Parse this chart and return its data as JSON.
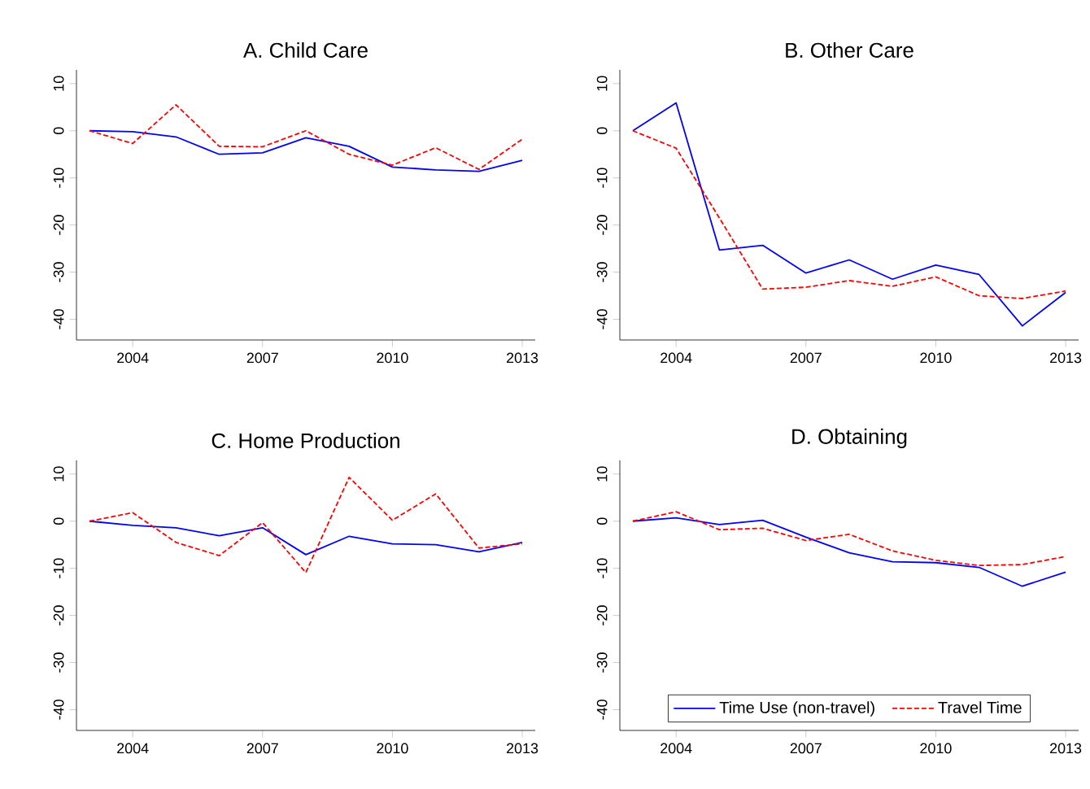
{
  "chart_data": [
    {
      "type": "line",
      "title": "A. Child Care",
      "x": [
        2003,
        2004,
        2005,
        2006,
        2007,
        2008,
        2009,
        2010,
        2011,
        2012,
        2013
      ],
      "xlim": [
        2002.7,
        2013.3
      ],
      "xticks": [
        2004,
        2007,
        2010,
        2013
      ],
      "ylim": [
        -44.4,
        12.9
      ],
      "yticks": [
        -40,
        -30,
        -20,
        -10,
        0,
        10
      ],
      "grid": false,
      "legend": false,
      "series": [
        {
          "color": "#0000ff",
          "line_style": "solid",
          "values": [
            0,
            -0.2,
            -1.3,
            -5,
            -4.7,
            -1.5,
            -3.3,
            -7.7,
            -8.3,
            -8.6,
            -6.3
          ]
        },
        {
          "color": "#ff0000",
          "line_style": "dashed",
          "values": [
            0,
            -2.7,
            5.5,
            -3.3,
            -3.4,
            0,
            -5,
            -7.3,
            -3.6,
            -8.2,
            -1.8
          ]
        }
      ]
    },
    {
      "type": "line",
      "title": "B. Other Care",
      "x": [
        2003,
        2004,
        2005,
        2006,
        2007,
        2008,
        2009,
        2010,
        2011,
        2012,
        2013
      ],
      "xlim": [
        2002.7,
        2013.3
      ],
      "xticks": [
        2004,
        2007,
        2010,
        2013
      ],
      "ylim": [
        -44.4,
        12.9
      ],
      "yticks": [
        -40,
        -30,
        -20,
        -10,
        0,
        10
      ],
      "grid": false,
      "legend": false,
      "series": [
        {
          "color": "#0000ff",
          "line_style": "solid",
          "values": [
            0,
            5.9,
            -25.3,
            -24.3,
            -30.2,
            -27.4,
            -31.5,
            -28.5,
            -30.5,
            -41.4,
            -34.3
          ]
        },
        {
          "color": "#ff0000",
          "line_style": "dashed",
          "values": [
            0,
            -3.7,
            -18.5,
            -33.6,
            -33.2,
            -31.8,
            -33,
            -31,
            -35,
            -35.6,
            -34
          ]
        }
      ]
    },
    {
      "type": "line",
      "title": "C. Home Production",
      "x": [
        2003,
        2004,
        2005,
        2006,
        2007,
        2008,
        2009,
        2010,
        2011,
        2012,
        2013
      ],
      "xlim": [
        2002.7,
        2013.3
      ],
      "xticks": [
        2004,
        2007,
        2010,
        2013
      ],
      "ylim": [
        -44.4,
        12.9
      ],
      "yticks": [
        -40,
        -30,
        -20,
        -10,
        0,
        10
      ],
      "grid": false,
      "legend": false,
      "series": [
        {
          "color": "#0000ff",
          "line_style": "solid",
          "values": [
            0,
            -0.9,
            -1.4,
            -3.1,
            -1.4,
            -7.1,
            -3.2,
            -4.8,
            -5,
            -6.5,
            -4.5
          ]
        },
        {
          "color": "#ff0000",
          "line_style": "dashed",
          "values": [
            0,
            1.8,
            -4.5,
            -7.3,
            -0.3,
            -10.9,
            9.3,
            0.2,
            5.8,
            -5.7,
            -4.8
          ]
        }
      ]
    },
    {
      "type": "line",
      "title": "D. Obtaining",
      "x": [
        2003,
        2004,
        2005,
        2006,
        2007,
        2008,
        2009,
        2010,
        2011,
        2012,
        2013
      ],
      "xlim": [
        2002.7,
        2013.3
      ],
      "xticks": [
        2004,
        2007,
        2010,
        2013
      ],
      "ylim": [
        -44.4,
        12.9
      ],
      "yticks": [
        -40,
        -30,
        -20,
        -10,
        0,
        10
      ],
      "grid": false,
      "legend": "bottom",
      "series": [
        {
          "name": "Time Use (non-travel)",
          "color": "#0000ff",
          "line_style": "solid",
          "values": [
            0,
            0.7,
            -0.7,
            0.2,
            -3.4,
            -6.7,
            -8.6,
            -8.8,
            -9.8,
            -13.8,
            -10.8
          ]
        },
        {
          "name": "Travel Time",
          "color": "#ff0000",
          "line_style": "dashed",
          "values": [
            0,
            2,
            -1.8,
            -1.5,
            -4.1,
            -2.8,
            -6.3,
            -8.3,
            -9.4,
            -9.2,
            -7.5
          ]
        }
      ]
    }
  ]
}
